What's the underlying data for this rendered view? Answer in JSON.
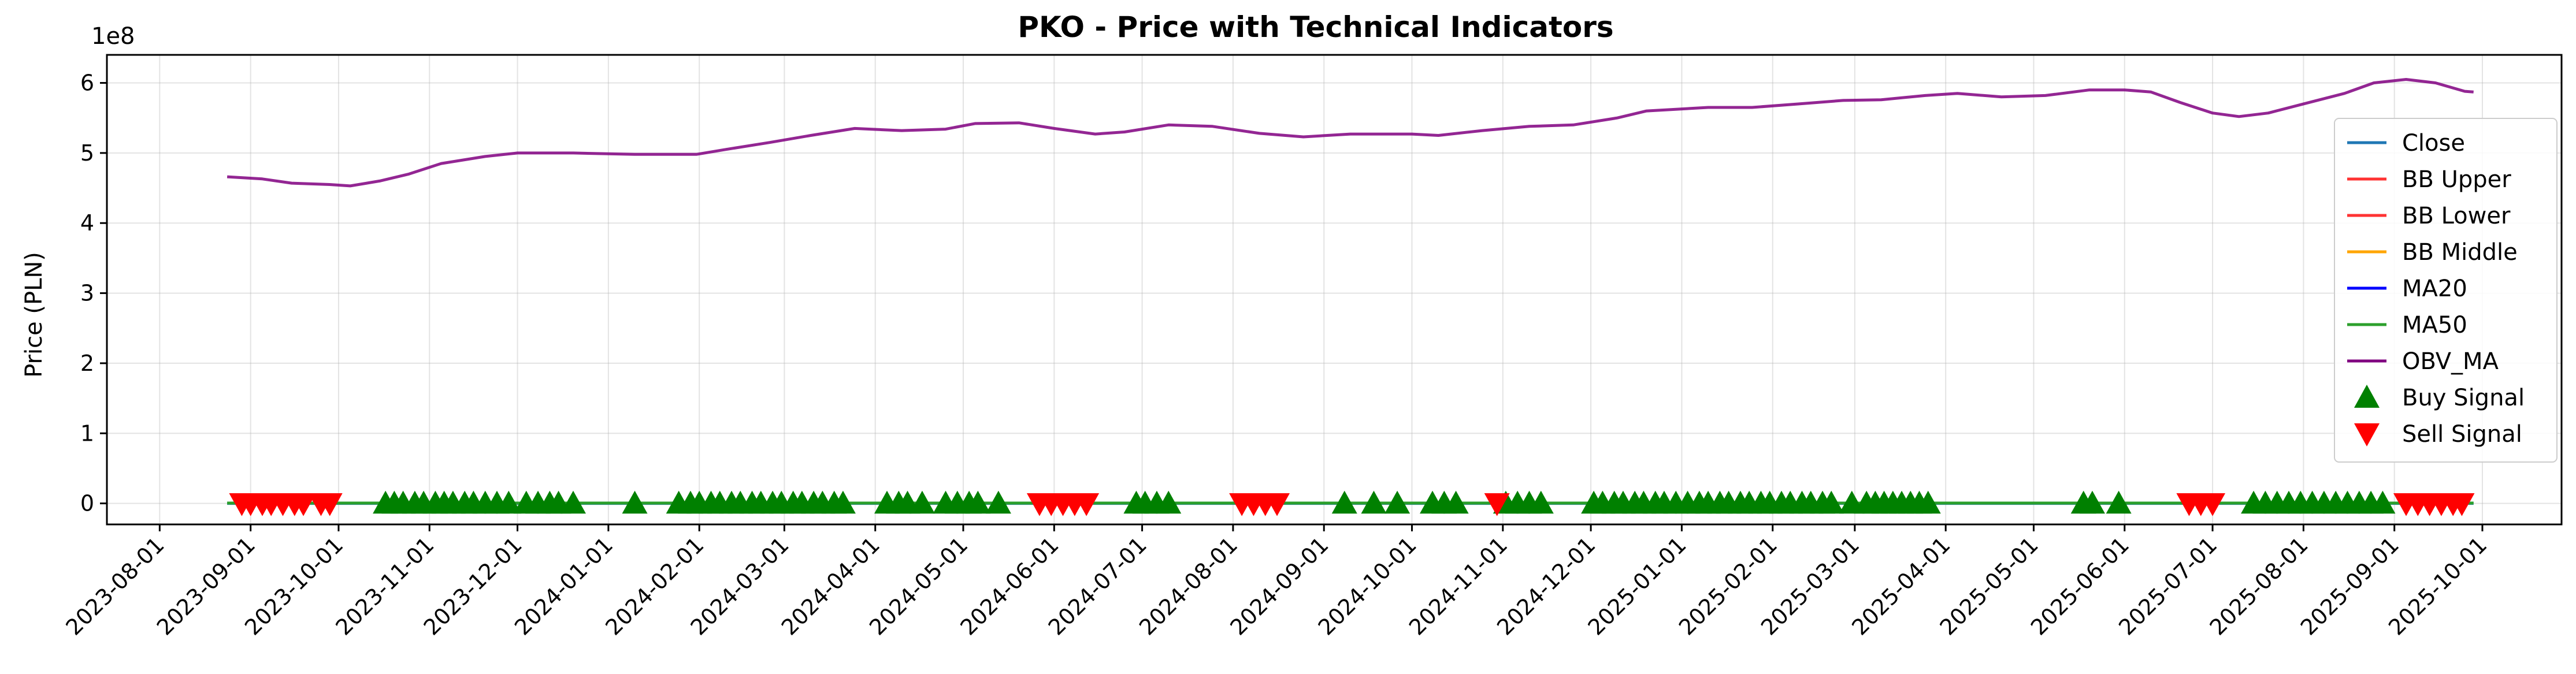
{
  "chart_data": {
    "type": "line",
    "title": "PKO - Price with Technical Indicators",
    "ylabel": "Price (PLN)",
    "xlabel": "",
    "y_offset_label": "1e8",
    "ylim": [
      -0.3,
      6.4
    ],
    "y_ticks": [
      0,
      1,
      2,
      3,
      4,
      5,
      6
    ],
    "xlim": [
      "2023-07-14",
      "2025-10-28"
    ],
    "x_ticks": [
      "2023-08-01",
      "2023-09-01",
      "2023-10-01",
      "2023-11-01",
      "2023-12-01",
      "2024-01-01",
      "2024-02-01",
      "2024-03-01",
      "2024-04-01",
      "2024-05-01",
      "2024-06-01",
      "2024-07-01",
      "2024-08-01",
      "2024-09-01",
      "2024-10-01",
      "2024-11-01",
      "2024-12-01",
      "2025-01-01",
      "2025-02-01",
      "2025-03-01",
      "2025-04-01",
      "2025-05-01",
      "2025-06-01",
      "2025-07-01",
      "2025-08-01",
      "2025-09-01",
      "2025-10-01"
    ],
    "grid": true,
    "legend_position": "center-right",
    "legend": [
      {
        "label": "Close",
        "color": "#1f77b4",
        "kind": "line"
      },
      {
        "label": "BB Upper",
        "color": "#ff3333",
        "kind": "line"
      },
      {
        "label": "BB Lower",
        "color": "#ff3333",
        "kind": "line"
      },
      {
        "label": "BB Middle",
        "color": "#ffa500",
        "kind": "line"
      },
      {
        "label": "MA20",
        "color": "#0000ff",
        "kind": "line"
      },
      {
        "label": "MA50",
        "color": "#2ca02c",
        "kind": "line"
      },
      {
        "label": "OBV_MA",
        "color": "#800080",
        "kind": "line"
      },
      {
        "label": "Buy Signal",
        "color": "#008000",
        "kind": "triangle-up"
      },
      {
        "label": "Sell Signal",
        "color": "#ff0000",
        "kind": "triangle-down"
      }
    ],
    "series": [
      {
        "name": "OBV_MA",
        "color": "#800080",
        "points": [
          [
            "2023-08-24",
            4.66
          ],
          [
            "2023-09-05",
            4.63
          ],
          [
            "2023-09-15",
            4.57
          ],
          [
            "2023-09-28",
            4.55
          ],
          [
            "2023-10-05",
            4.53
          ],
          [
            "2023-10-15",
            4.6
          ],
          [
            "2023-10-25",
            4.7
          ],
          [
            "2023-11-05",
            4.85
          ],
          [
            "2023-11-20",
            4.95
          ],
          [
            "2023-12-01",
            5.0
          ],
          [
            "2023-12-20",
            5.0
          ],
          [
            "2024-01-10",
            4.98
          ],
          [
            "2024-01-31",
            4.98
          ],
          [
            "2024-02-10",
            5.05
          ],
          [
            "2024-02-25",
            5.15
          ],
          [
            "2024-03-10",
            5.25
          ],
          [
            "2024-03-25",
            5.35
          ],
          [
            "2024-04-10",
            5.32
          ],
          [
            "2024-04-25",
            5.34
          ],
          [
            "2024-05-05",
            5.42
          ],
          [
            "2024-05-20",
            5.43
          ],
          [
            "2024-06-01",
            5.35
          ],
          [
            "2024-06-15",
            5.27
          ],
          [
            "2024-06-25",
            5.3
          ],
          [
            "2024-07-10",
            5.4
          ],
          [
            "2024-07-25",
            5.38
          ],
          [
            "2024-08-10",
            5.28
          ],
          [
            "2024-08-25",
            5.23
          ],
          [
            "2024-09-10",
            5.27
          ],
          [
            "2024-10-01",
            5.27
          ],
          [
            "2024-10-10",
            5.25
          ],
          [
            "2024-10-25",
            5.32
          ],
          [
            "2024-11-10",
            5.38
          ],
          [
            "2024-11-25",
            5.4
          ],
          [
            "2024-12-10",
            5.5
          ],
          [
            "2024-12-20",
            5.6
          ],
          [
            "2025-01-10",
            5.65
          ],
          [
            "2025-01-25",
            5.65
          ],
          [
            "2025-02-10",
            5.7
          ],
          [
            "2025-02-25",
            5.75
          ],
          [
            "2025-03-10",
            5.76
          ],
          [
            "2025-03-25",
            5.82
          ],
          [
            "2025-04-05",
            5.85
          ],
          [
            "2025-04-20",
            5.8
          ],
          [
            "2025-05-05",
            5.82
          ],
          [
            "2025-05-20",
            5.9
          ],
          [
            "2025-06-01",
            5.9
          ],
          [
            "2025-06-10",
            5.87
          ],
          [
            "2025-06-20",
            5.72
          ],
          [
            "2025-07-01",
            5.57
          ],
          [
            "2025-07-10",
            5.52
          ],
          [
            "2025-07-20",
            5.57
          ],
          [
            "2025-08-01",
            5.7
          ],
          [
            "2025-08-15",
            5.85
          ],
          [
            "2025-08-25",
            6.0
          ],
          [
            "2025-09-05",
            6.05
          ],
          [
            "2025-09-15",
            6.0
          ],
          [
            "2025-09-25",
            5.88
          ],
          [
            "2025-09-28",
            5.87
          ]
        ]
      },
      {
        "name": "Close",
        "color": "#1f77b4",
        "points": [
          [
            "2023-08-24",
            0.0
          ],
          [
            "2025-09-28",
            0.0
          ]
        ]
      },
      {
        "name": "MA50",
        "color": "#2ca02c",
        "points": [
          [
            "2023-08-24",
            0.005
          ],
          [
            "2025-09-28",
            0.005
          ]
        ]
      }
    ],
    "buy_signals": {
      "dates": [
        "2023-10-17",
        "2023-10-20",
        "2023-10-23",
        "2023-10-27",
        "2023-10-30",
        "2023-11-03",
        "2023-11-06",
        "2023-11-09",
        "2023-11-13",
        "2023-11-16",
        "2023-11-20",
        "2023-11-24",
        "2023-11-28",
        "2023-12-04",
        "2023-12-08",
        "2023-12-12",
        "2023-12-15",
        "2023-12-20",
        "2024-01-10",
        "2024-01-25",
        "2024-01-29",
        "2024-02-01",
        "2024-02-05",
        "2024-02-08",
        "2024-02-12",
        "2024-02-15",
        "2024-02-19",
        "2024-02-22",
        "2024-02-26",
        "2024-02-29",
        "2024-03-04",
        "2024-03-07",
        "2024-03-11",
        "2024-03-14",
        "2024-03-18",
        "2024-03-21",
        "2024-04-05",
        "2024-04-09",
        "2024-04-12",
        "2024-04-17",
        "2024-04-25",
        "2024-04-29",
        "2024-05-03",
        "2024-05-06",
        "2024-05-13",
        "2024-06-29",
        "2024-07-02",
        "2024-07-06",
        "2024-07-10",
        "2024-09-08",
        "2024-09-18",
        "2024-09-26",
        "2024-10-08",
        "2024-10-12",
        "2024-10-16",
        "2024-11-02",
        "2024-11-06",
        "2024-11-10",
        "2024-11-14",
        "2024-12-02",
        "2024-12-05",
        "2024-12-09",
        "2024-12-12",
        "2024-12-16",
        "2024-12-19",
        "2024-12-23",
        "2024-12-26",
        "2024-12-30",
        "2025-01-03",
        "2025-01-07",
        "2025-01-10",
        "2025-01-14",
        "2025-01-17",
        "2025-01-21",
        "2025-01-24",
        "2025-01-28",
        "2025-01-31",
        "2025-02-04",
        "2025-02-07",
        "2025-02-11",
        "2025-02-14",
        "2025-02-18",
        "2025-02-21",
        "2025-02-28",
        "2025-03-05",
        "2025-03-08",
        "2025-03-11",
        "2025-03-14",
        "2025-03-17",
        "2025-03-20",
        "2025-03-23",
        "2025-03-26",
        "2025-05-18",
        "2025-05-21",
        "2025-05-30",
        "2025-07-15",
        "2025-07-19",
        "2025-07-23",
        "2025-07-27",
        "2025-07-31",
        "2025-08-04",
        "2025-08-08",
        "2025-08-12",
        "2025-08-16",
        "2025-08-20",
        "2025-08-24",
        "2025-08-28"
      ],
      "value": 0
    },
    "sell_signals": {
      "dates": [
        "2023-08-29",
        "2023-09-01",
        "2023-09-05",
        "2023-09-08",
        "2023-09-12",
        "2023-09-16",
        "2023-09-19",
        "2023-09-25",
        "2023-09-28",
        "2024-05-27",
        "2024-05-31",
        "2024-06-04",
        "2024-06-08",
        "2024-06-12",
        "2024-08-04",
        "2024-08-08",
        "2024-08-12",
        "2024-08-16",
        "2024-10-30",
        "2025-06-23",
        "2025-06-27",
        "2025-07-01",
        "2025-09-05",
        "2025-09-09",
        "2025-09-13",
        "2025-09-17",
        "2025-09-21",
        "2025-09-24"
      ],
      "value": 0
    }
  }
}
